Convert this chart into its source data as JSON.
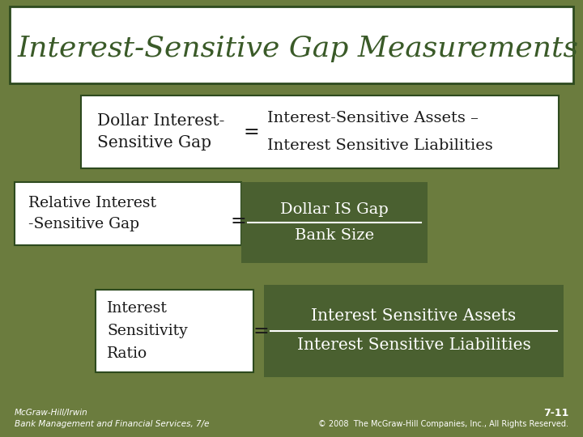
{
  "bg_color": "#6b7c3e",
  "title": "Interest-Sensitive Gap Measurements",
  "title_fontsize": 30,
  "title_color": "#3a5a28",
  "box1_left": "Dollar Interest-\nSensitive Gap",
  "box1_eq": "=",
  "box1_right_top": "Interest-Sensitive Assets –",
  "box1_right_bot": "Interest Sensitive Liabilities",
  "box2_left": "Relative Interest\n-Sensitive Gap",
  "box2_eq": "=",
  "box2_num": "Dollar IS Gap",
  "box2_den": "Bank Size",
  "box3_left": "Interest\nSensitivity\nRatio",
  "box3_eq": "=",
  "box3_num": "Interest Sensitive Assets",
  "box3_den": "Interest Sensitive Liabilities",
  "footer_left1": "McGraw-Hill/Irwin",
  "footer_left2": "Bank Management and Financial Services, 7/e",
  "footer_right1": "7-11",
  "footer_right2": "© 2008  The McGraw-Hill Companies, Inc., All Rights Reserved.",
  "white": "#ffffff",
  "dark_green": "#2d4a1e",
  "text_dark": "#1a1a1a",
  "fraction_bg": "#4a6030"
}
